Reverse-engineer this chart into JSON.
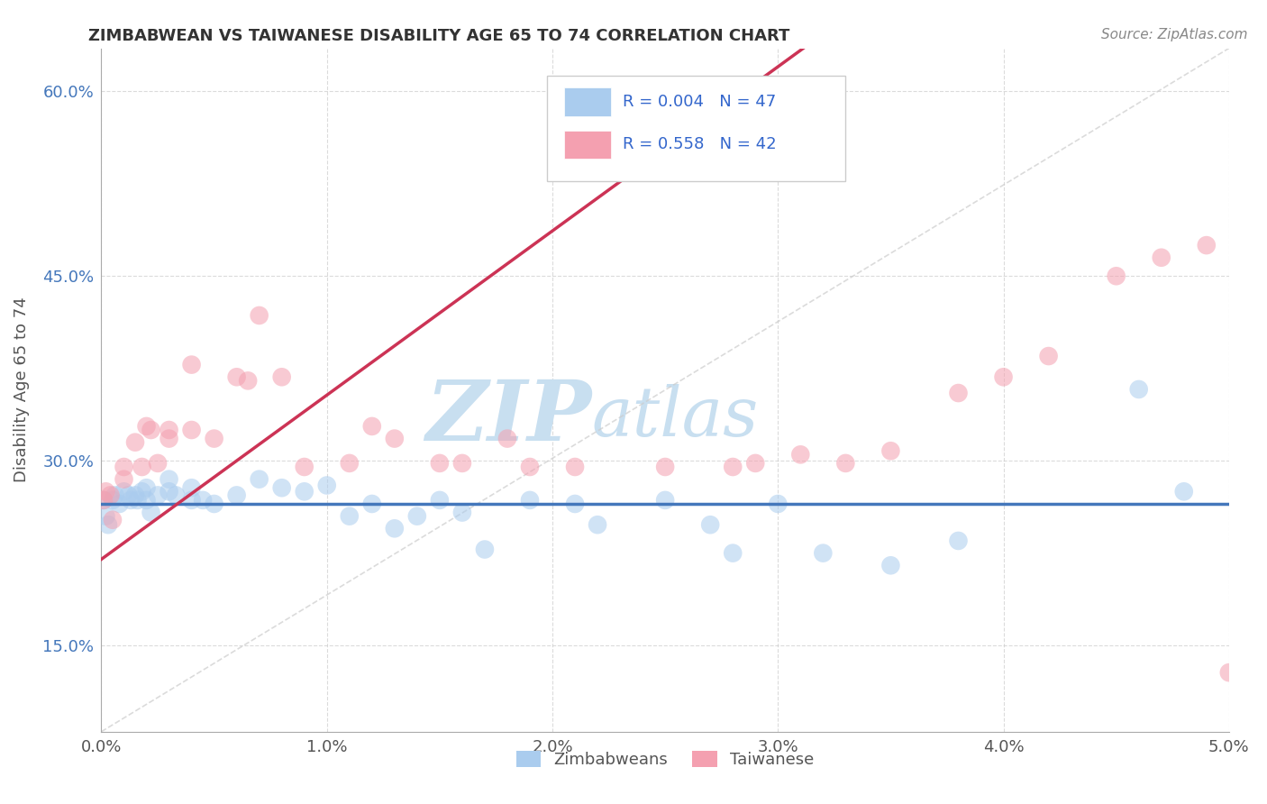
{
  "title": "ZIMBABWEAN VS TAIWANESE DISABILITY AGE 65 TO 74 CORRELATION CHART",
  "source": "Source: ZipAtlas.com",
  "ylabel": "Disability Age 65 to 74",
  "xmin": 0.0,
  "xmax": 0.05,
  "ymin": 0.08,
  "ymax": 0.635,
  "x_ticks": [
    0.0,
    0.01,
    0.02,
    0.03,
    0.04,
    0.05
  ],
  "x_tick_labels": [
    "0.0%",
    "1.0%",
    "2.0%",
    "3.0%",
    "4.0%",
    "5.0%"
  ],
  "y_ticks": [
    0.15,
    0.3,
    0.45,
    0.6
  ],
  "y_tick_labels": [
    "15.0%",
    "30.0%",
    "45.0%",
    "60.0%"
  ],
  "grid_color": "#cccccc",
  "background_color": "#ffffff",
  "legend_R_zimbabwean": "0.004",
  "legend_N_zimbabwean": "47",
  "legend_R_taiwanese": "0.558",
  "legend_N_taiwanese": "42",
  "zimbabwean_color": "#aaccee",
  "taiwanese_color": "#f4a0b0",
  "zim_line_color": "#4477bb",
  "tai_line_color": "#cc3355",
  "watermark_zip": "ZIP",
  "watermark_atlas": "atlas",
  "watermark_color": "#c8dff0",
  "zim_x": [
    0.0001,
    0.0002,
    0.0003,
    0.0005,
    0.0006,
    0.0008,
    0.001,
    0.0012,
    0.0013,
    0.0015,
    0.0016,
    0.0018,
    0.002,
    0.002,
    0.0022,
    0.0025,
    0.003,
    0.003,
    0.0033,
    0.004,
    0.004,
    0.0045,
    0.005,
    0.006,
    0.007,
    0.008,
    0.009,
    0.01,
    0.011,
    0.012,
    0.013,
    0.014,
    0.015,
    0.016,
    0.017,
    0.019,
    0.021,
    0.022,
    0.025,
    0.027,
    0.028,
    0.03,
    0.032,
    0.035,
    0.038,
    0.046,
    0.048
  ],
  "zim_y": [
    0.268,
    0.255,
    0.248,
    0.268,
    0.272,
    0.265,
    0.275,
    0.272,
    0.268,
    0.272,
    0.268,
    0.275,
    0.268,
    0.278,
    0.258,
    0.272,
    0.285,
    0.275,
    0.272,
    0.268,
    0.278,
    0.268,
    0.265,
    0.272,
    0.285,
    0.278,
    0.275,
    0.28,
    0.255,
    0.265,
    0.245,
    0.255,
    0.268,
    0.258,
    0.228,
    0.268,
    0.265,
    0.248,
    0.268,
    0.248,
    0.225,
    0.265,
    0.225,
    0.215,
    0.235,
    0.358,
    0.275
  ],
  "tai_x": [
    0.0001,
    0.0002,
    0.0004,
    0.0005,
    0.001,
    0.001,
    0.0015,
    0.0018,
    0.002,
    0.0022,
    0.0025,
    0.003,
    0.003,
    0.004,
    0.004,
    0.005,
    0.006,
    0.0065,
    0.007,
    0.008,
    0.009,
    0.011,
    0.012,
    0.013,
    0.015,
    0.016,
    0.018,
    0.019,
    0.021,
    0.025,
    0.028,
    0.029,
    0.031,
    0.033,
    0.035,
    0.038,
    0.04,
    0.042,
    0.045,
    0.047,
    0.049,
    0.05
  ],
  "tai_y": [
    0.268,
    0.275,
    0.272,
    0.252,
    0.285,
    0.295,
    0.315,
    0.295,
    0.328,
    0.325,
    0.298,
    0.325,
    0.318,
    0.378,
    0.325,
    0.318,
    0.368,
    0.365,
    0.418,
    0.368,
    0.295,
    0.298,
    0.328,
    0.318,
    0.298,
    0.298,
    0.318,
    0.295,
    0.295,
    0.295,
    0.295,
    0.298,
    0.305,
    0.298,
    0.308,
    0.355,
    0.368,
    0.385,
    0.45,
    0.465,
    0.475,
    0.128
  ]
}
